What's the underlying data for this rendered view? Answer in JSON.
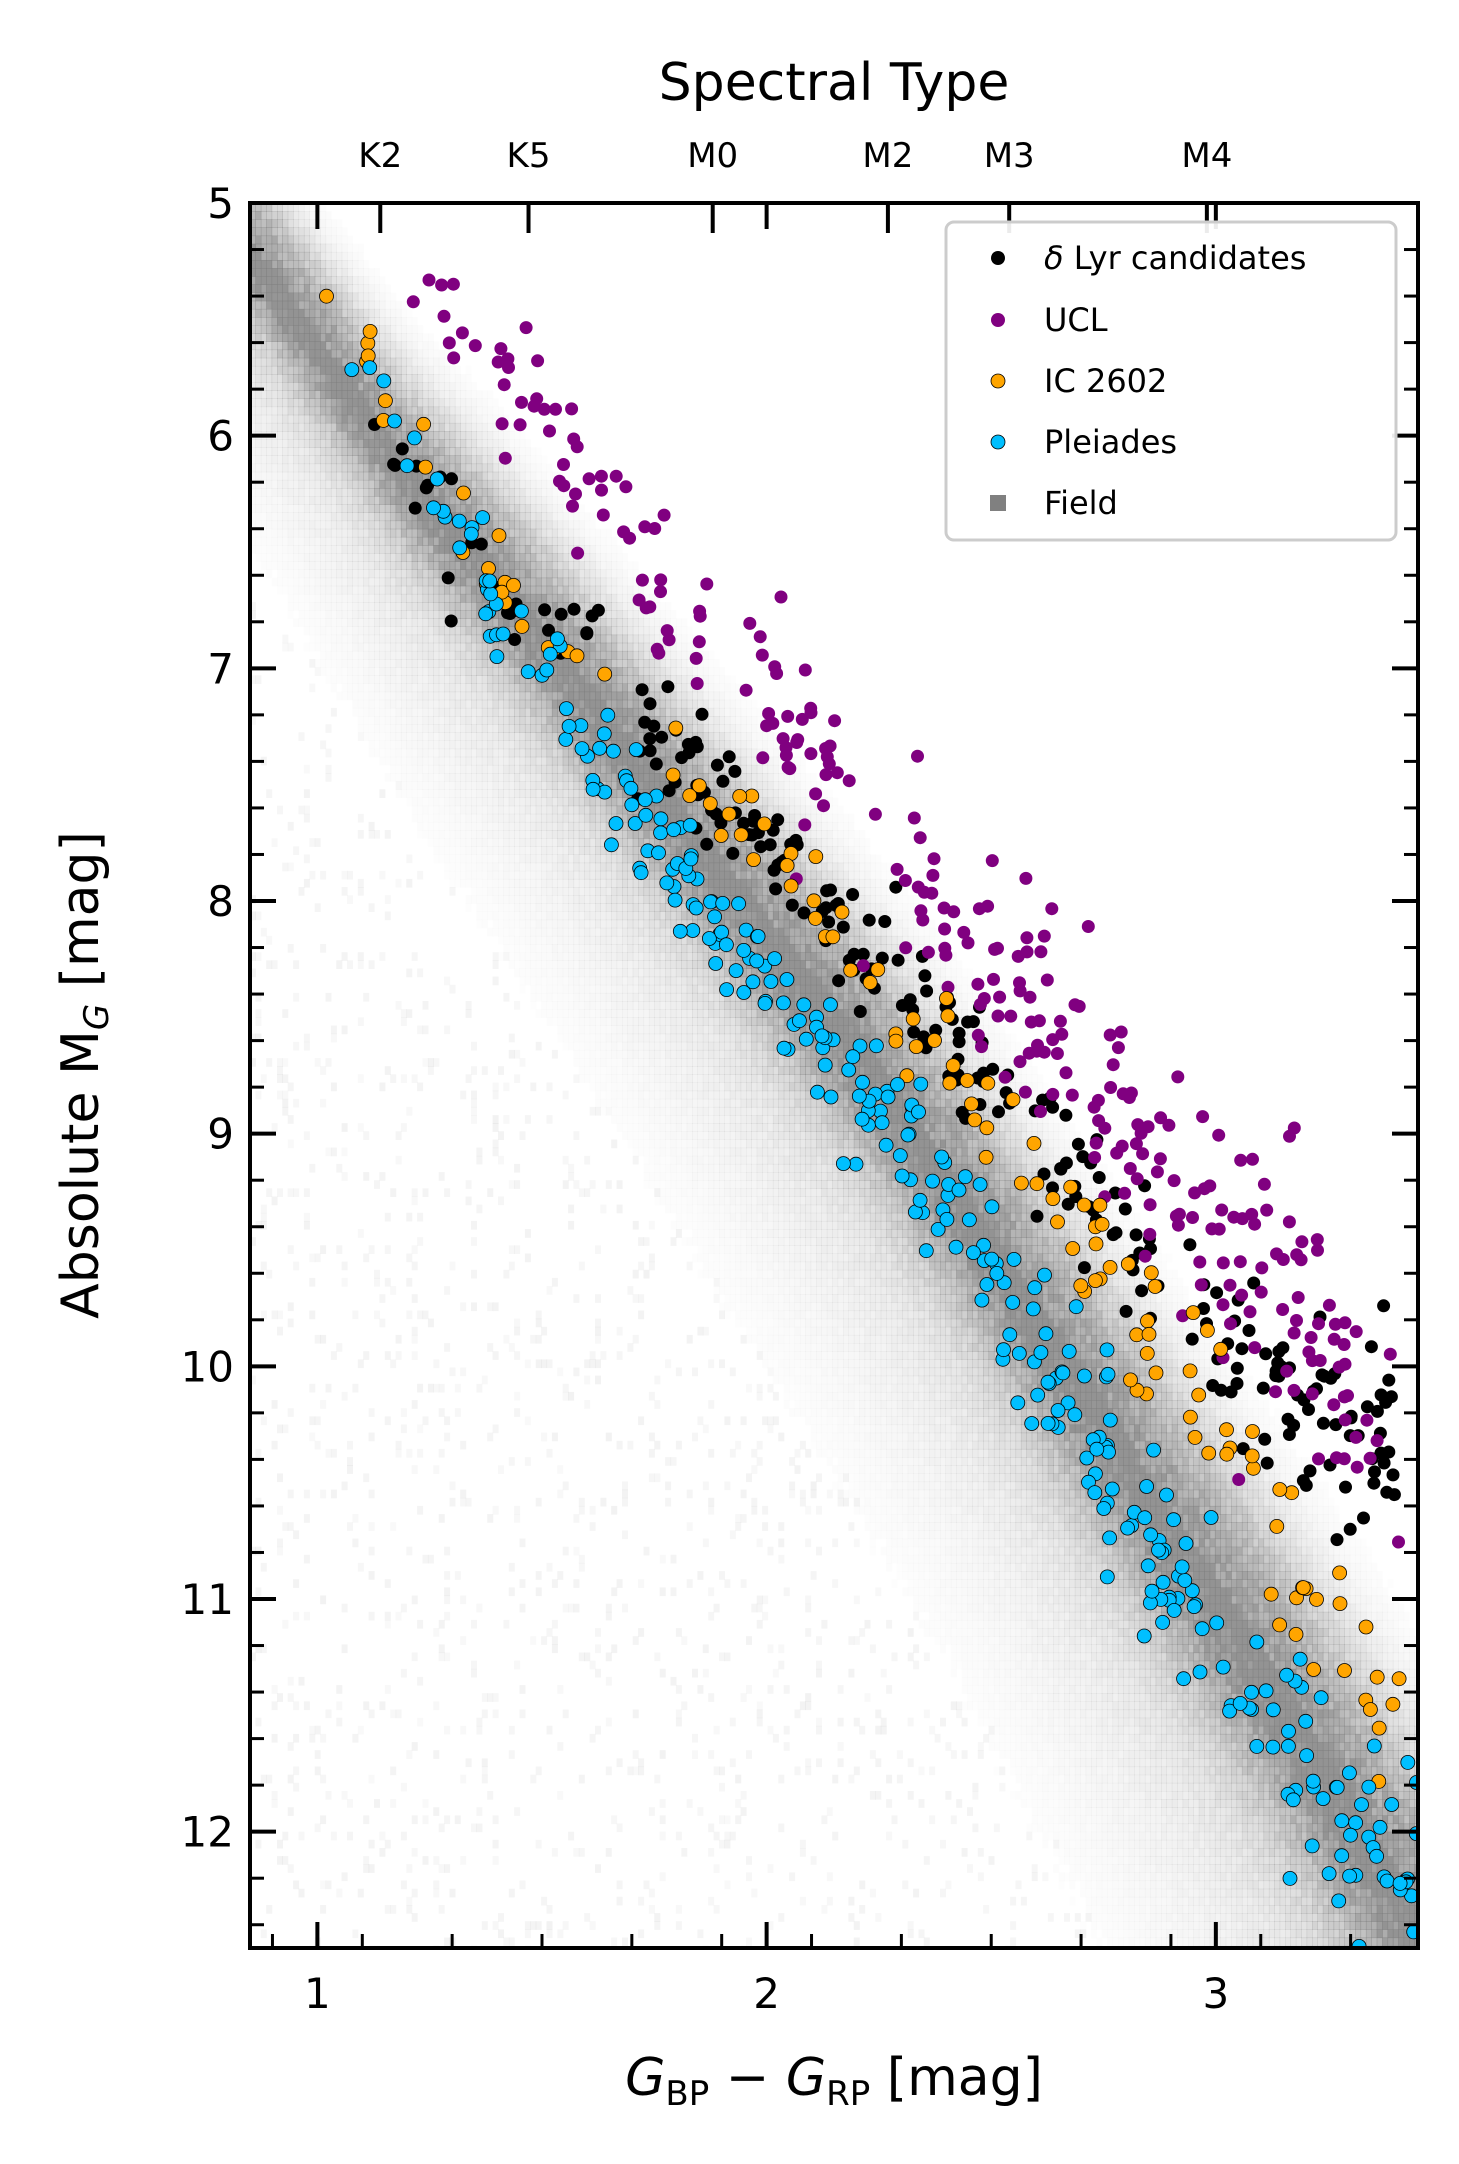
{
  "chart_data": {
    "type": "scatter",
    "title": "",
    "xlabel": {
      "main": "G",
      "sub1": "BP",
      "minus": " − ",
      "main2": "G",
      "sub2": "RP",
      "unit": " [mag]"
    },
    "ylabel": {
      "prefix": "Absolute M",
      "sub": "G",
      "unit": " [mag]"
    },
    "top_axis_label": "Spectral Type",
    "xlim": [
      0.85,
      3.45
    ],
    "ylim": [
      12.5,
      5.0
    ],
    "y_inverted": true,
    "x_ticks": [
      1,
      2,
      3
    ],
    "x_tick_labels": [
      "1",
      "2",
      "3"
    ],
    "y_ticks": [
      5,
      6,
      7,
      8,
      9,
      10,
      11,
      12
    ],
    "y_tick_labels": [
      "5",
      "6",
      "7",
      "8",
      "9",
      "10",
      "11",
      "12"
    ],
    "spectral_types": [
      {
        "label": "K2",
        "x": 1.14
      },
      {
        "label": "K5",
        "x": 1.47
      },
      {
        "label": "M0",
        "x": 1.88
      },
      {
        "label": "M2",
        "x": 2.27
      },
      {
        "label": "M3",
        "x": 2.54
      },
      {
        "label": "M4",
        "x": 2.98
      }
    ],
    "legend": {
      "position": "upper right"
    },
    "series": [
      {
        "name": "δ Lyr candidates",
        "name_italic": "δ",
        "name_rest": " Lyr candidates",
        "color": "#000000",
        "marker": "circle",
        "anchors": [
          [
            0.95,
            5.2
          ],
          [
            1.1,
            5.75
          ],
          [
            1.25,
            6.2
          ],
          [
            1.4,
            6.6
          ],
          [
            1.6,
            6.95
          ],
          [
            1.8,
            7.35
          ],
          [
            2.0,
            7.8
          ],
          [
            2.2,
            8.2
          ],
          [
            2.4,
            8.55
          ],
          [
            2.6,
            8.95
          ],
          [
            2.8,
            9.4
          ],
          [
            3.0,
            9.85
          ],
          [
            3.2,
            10.2
          ],
          [
            3.4,
            10.4
          ]
        ],
        "scatter": 0.09,
        "count": 260,
        "seed": 11
      },
      {
        "name": "UCL",
        "color": "#800080",
        "marker": "circle",
        "anchors": [
          [
            1.2,
            5.3
          ],
          [
            1.5,
            5.9
          ],
          [
            1.8,
            6.8
          ],
          [
            2.0,
            7.2
          ],
          [
            2.2,
            7.6
          ],
          [
            2.4,
            8.1
          ],
          [
            2.6,
            8.5
          ],
          [
            2.8,
            8.95
          ],
          [
            3.0,
            9.4
          ],
          [
            3.2,
            9.8
          ],
          [
            3.4,
            10.4
          ]
        ],
        "scatter": 0.13,
        "count": 280,
        "seed": 23
      },
      {
        "name": "IC 2602",
        "color": "#ffa500",
        "marker": "circle",
        "anchors": [
          [
            0.95,
            5.1
          ],
          [
            1.1,
            5.6
          ],
          [
            1.3,
            6.3
          ],
          [
            1.6,
            7.0
          ],
          [
            1.9,
            7.6
          ],
          [
            2.2,
            8.2
          ],
          [
            2.4,
            8.6
          ],
          [
            2.6,
            9.1
          ],
          [
            2.8,
            9.7
          ],
          [
            3.0,
            10.2
          ],
          [
            3.2,
            10.9
          ],
          [
            3.4,
            11.5
          ]
        ],
        "scatter": 0.08,
        "count": 130,
        "seed": 37
      },
      {
        "name": "Pleiades",
        "color": "#00bfff",
        "marker": "circle",
        "anchors": [
          [
            0.95,
            5.05
          ],
          [
            1.1,
            5.6
          ],
          [
            1.3,
            6.4
          ],
          [
            1.5,
            7.0
          ],
          [
            1.7,
            7.6
          ],
          [
            1.9,
            8.1
          ],
          [
            2.1,
            8.6
          ],
          [
            2.3,
            9.0
          ],
          [
            2.5,
            9.6
          ],
          [
            2.7,
            10.2
          ],
          [
            2.9,
            10.9
          ],
          [
            3.1,
            11.5
          ],
          [
            3.3,
            12.0
          ],
          [
            3.45,
            12.4
          ]
        ],
        "scatter": 0.09,
        "count": 330,
        "seed": 53
      },
      {
        "name": "Field",
        "color": "#808080",
        "marker": "square",
        "anchors": [
          [
            0.85,
            5.15
          ],
          [
            1.0,
            5.55
          ],
          [
            1.2,
            6.1
          ],
          [
            1.4,
            6.55
          ],
          [
            1.6,
            7.05
          ],
          [
            1.8,
            7.55
          ],
          [
            2.0,
            8.05
          ],
          [
            2.2,
            8.55
          ],
          [
            2.4,
            9.1
          ],
          [
            2.6,
            9.7
          ],
          [
            2.8,
            10.3
          ],
          [
            3.0,
            10.9
          ],
          [
            3.2,
            11.5
          ],
          [
            3.45,
            12.3
          ]
        ],
        "width": 0.35
      }
    ]
  }
}
